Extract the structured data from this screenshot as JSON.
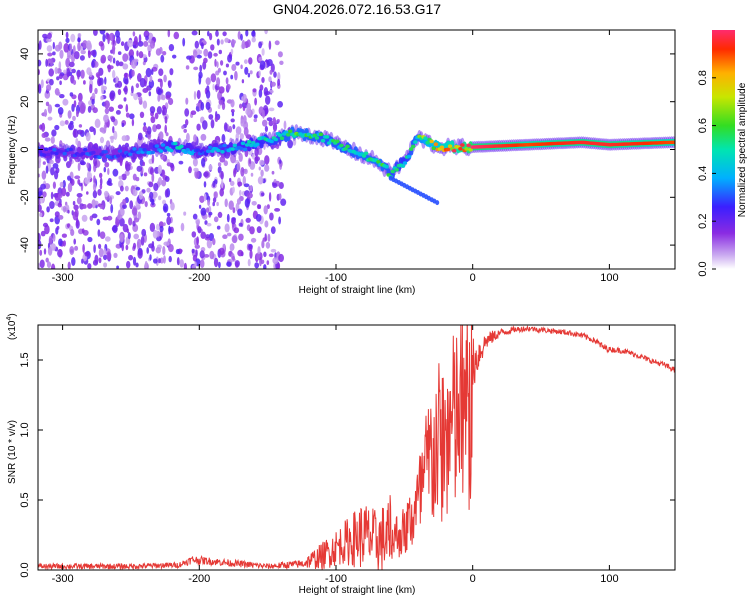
{
  "title": "GN04.2026.072.16.53.G17",
  "colors": {
    "snr_line": "#e53935",
    "frame": "#000000",
    "background": "#ffffff"
  },
  "chart_data": [
    {
      "type": "heatmap",
      "name": "spectrogram",
      "xlabel": "Height of straight line (km)",
      "ylabel": "Frequency (Hz)",
      "xlim": [
        -318,
        148
      ],
      "ylim": [
        -50,
        50
      ],
      "xticks": [
        -300,
        -200,
        -100,
        0,
        100
      ],
      "xtick_labels": [
        "-300",
        "-200",
        "-100",
        "0",
        "100"
      ],
      "yticks": [
        -40,
        -20,
        0,
        20,
        40
      ],
      "ytick_labels": [
        "-40",
        "-20",
        "0",
        "20",
        "40"
      ],
      "colorbar": {
        "label": "Normalized spectral amplitude",
        "range": [
          0,
          1
        ],
        "ticks": [
          0.0,
          0.2,
          0.4,
          0.6,
          0.8
        ],
        "tick_labels": [
          "0.0",
          "0.2",
          "0.4",
          "0.6",
          "0.8"
        ]
      },
      "ridge": [
        {
          "height_km": -310,
          "freq_hz": -1,
          "amplitude": 0.3
        },
        {
          "height_km": -260,
          "freq_hz": -2,
          "amplitude": 0.3
        },
        {
          "height_km": -225,
          "freq_hz": 1,
          "amplitude": 0.4
        },
        {
          "height_km": -215,
          "freq_hz": 1,
          "amplitude": 0.5
        },
        {
          "height_km": -200,
          "freq_hz": -1,
          "amplitude": 0.35
        },
        {
          "height_km": -170,
          "freq_hz": 1,
          "amplitude": 0.45
        },
        {
          "height_km": -150,
          "freq_hz": 4,
          "amplitude": 0.5
        },
        {
          "height_km": -130,
          "freq_hz": 7,
          "amplitude": 0.6
        },
        {
          "height_km": -110,
          "freq_hz": 5,
          "amplitude": 0.55
        },
        {
          "height_km": -90,
          "freq_hz": 0,
          "amplitude": 0.55
        },
        {
          "height_km": -70,
          "freq_hz": -5,
          "amplitude": 0.6
        },
        {
          "height_km": -60,
          "freq_hz": -10,
          "amplitude": 0.55
        },
        {
          "height_km": -50,
          "freq_hz": -5,
          "amplitude": 0.5
        },
        {
          "height_km": -40,
          "freq_hz": 5,
          "amplitude": 0.6
        },
        {
          "height_km": -25,
          "freq_hz": 1,
          "amplitude": 0.8
        },
        {
          "height_km": 0,
          "freq_hz": 1,
          "amplitude": 1.0
        },
        {
          "height_km": 40,
          "freq_hz": 2,
          "amplitude": 0.9
        },
        {
          "height_km": 80,
          "freq_hz": 3,
          "amplitude": 0.95
        },
        {
          "height_km": 100,
          "freq_hz": 2,
          "amplitude": 0.95
        },
        {
          "height_km": 145,
          "freq_hz": 3,
          "amplitude": 0.9
        }
      ]
    },
    {
      "type": "line",
      "name": "snr",
      "xlabel": "Height of straight line (km)",
      "ylabel": "SNR (10 * v/v)",
      "y_multiplier": "(x10⁴)",
      "y_multiplier_base": "(x10",
      "y_multiplier_exp": "4",
      "y_multiplier_close": ")",
      "xlim": [
        -318,
        148
      ],
      "ylim": [
        0,
        1.75
      ],
      "xticks": [
        -300,
        -200,
        -100,
        0,
        100
      ],
      "xtick_labels": [
        "-300",
        "-200",
        "-100",
        "0",
        "100"
      ],
      "yticks": [
        0.0,
        0.5,
        1.0,
        1.5
      ],
      "ytick_labels": [
        "0.0",
        "0.5",
        "1.0",
        "1.5"
      ],
      "series": [
        {
          "name": "SNR",
          "x": [
            -318,
            -250,
            -215,
            -205,
            -150,
            -125,
            -110,
            -95,
            -80,
            -70,
            -60,
            -50,
            -40,
            -35,
            -30,
            -25,
            -20,
            -15,
            -10,
            -5,
            0,
            5,
            10,
            20,
            30,
            40,
            50,
            60,
            70,
            80,
            90,
            95,
            100,
            110,
            120,
            130,
            140,
            148
          ],
          "y": [
            0.03,
            0.03,
            0.04,
            0.08,
            0.03,
            0.05,
            0.12,
            0.22,
            0.3,
            0.25,
            0.3,
            0.35,
            0.6,
            0.85,
            1.05,
            1.15,
            1.2,
            1.3,
            1.4,
            1.45,
            1.5,
            1.58,
            1.65,
            1.7,
            1.72,
            1.73,
            1.72,
            1.71,
            1.7,
            1.68,
            1.64,
            1.6,
            1.58,
            1.57,
            1.54,
            1.5,
            1.47,
            1.43
          ],
          "noise": [
            0.02,
            0.02,
            0.02,
            0.03,
            0.02,
            0.03,
            0.1,
            0.15,
            0.25,
            0.22,
            0.3,
            0.4,
            0.5,
            0.6,
            0.55,
            0.5,
            0.45,
            0.35,
            0.3,
            0.25,
            0.2,
            0.12,
            0.06,
            0.03,
            0.02,
            0.02,
            0.02,
            0.02,
            0.02,
            0.02,
            0.02,
            0.03,
            0.02,
            0.02,
            0.02,
            0.02,
            0.02,
            0.02
          ]
        }
      ]
    }
  ]
}
